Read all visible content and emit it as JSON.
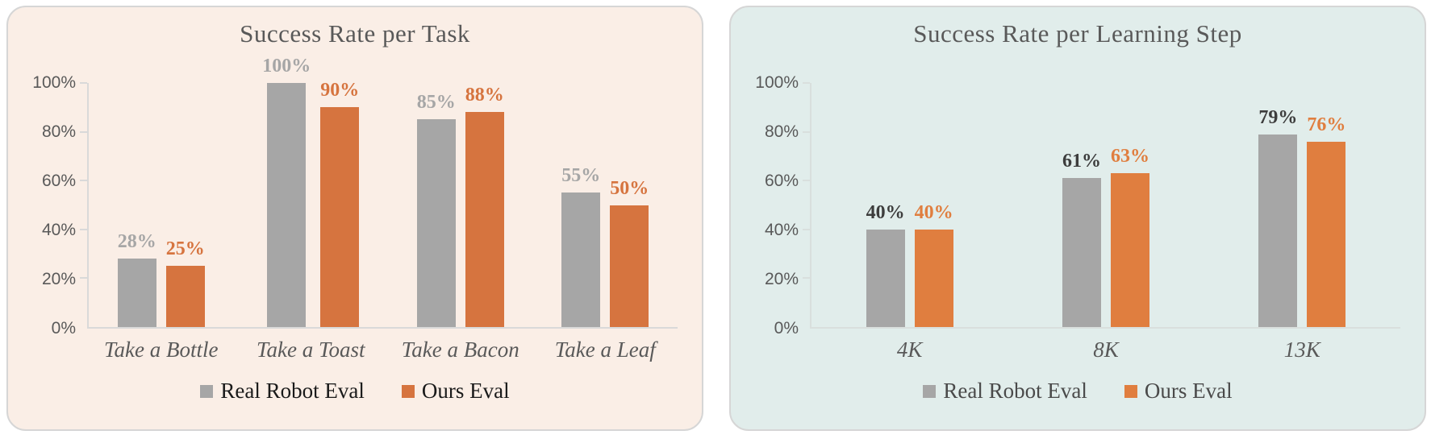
{
  "page": {
    "background": "#ffffff"
  },
  "charts": [
    {
      "title": "Success Rate per Task",
      "panel_bg": "#FAEEE6",
      "panel_border": "#D6D6D6",
      "title_color": "#595959",
      "tick_label_color": "#595959",
      "category_label_color": "#595959",
      "axis_color": "#D9D9D9",
      "legend_text_color": "#1A1A1A",
      "chart_data": {
        "type": "bar",
        "categories": [
          "Take a Bottle",
          "Take a Toast",
          "Take a Bacon",
          "Take a Leaf"
        ],
        "series": [
          {
            "name": "Real Robot Eval",
            "values": [
              28,
              100,
              85,
              55
            ],
            "color": "#A6A6A6",
            "label_color": "#A6A6A6"
          },
          {
            "name": "Ours Eval",
            "values": [
              25,
              90,
              88,
              50
            ],
            "color": "#D6743F",
            "label_color": "#D6743F"
          }
        ],
        "data_label_suffix": "%",
        "title": "Success Rate per Task",
        "xlabel": "",
        "ylabel": "",
        "ylim": [
          0,
          100
        ],
        "yticks": [
          "0%",
          "20%",
          "40%",
          "60%",
          "80%",
          "100%"
        ],
        "grid": false,
        "legend_position": "bottom"
      }
    },
    {
      "title": "Success Rate per Learning Step",
      "panel_bg": "#E1EDEB",
      "panel_border": "#D6D6D6",
      "title_color": "#595959",
      "tick_label_color": "#595959",
      "category_label_color": "#595959",
      "axis_color": "#D9DFDD",
      "legend_text_color": "#4A4A4A",
      "chart_data": {
        "type": "bar",
        "categories": [
          "4K",
          "8K",
          "13K"
        ],
        "series": [
          {
            "name": "Real Robot Eval",
            "values": [
              40,
              61,
              79
            ],
            "color": "#A6A6A6",
            "label_color": "#3D3D3D"
          },
          {
            "name": "Ours Eval",
            "values": [
              40,
              63,
              76
            ],
            "color": "#E07E3F",
            "label_color": "#E07E3F"
          }
        ],
        "data_label_suffix": "%",
        "title": "Success Rate per Learning Step",
        "xlabel": "",
        "ylabel": "",
        "ylim": [
          0,
          100
        ],
        "yticks": [
          "0%",
          "20%",
          "40%",
          "60%",
          "80%",
          "100%"
        ],
        "grid": false,
        "legend_position": "bottom"
      }
    }
  ]
}
